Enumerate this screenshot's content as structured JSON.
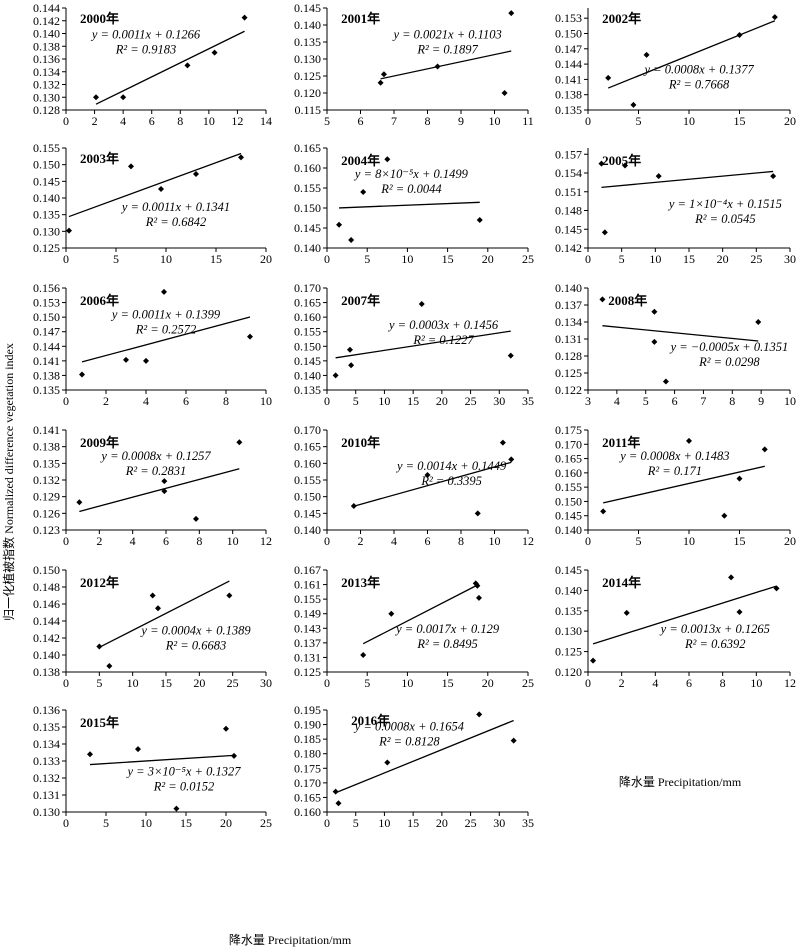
{
  "figure": {
    "ylabel": "归一化植被指数 Normalized difference vegetation index",
    "xlabel_right": "降水量 Precipitation/mm",
    "xlabel_bottom": "降水量 Precipitation/mm"
  },
  "chart_data": [
    {
      "type": "scatter",
      "title": "2000年",
      "equation": "y = 0.0011x + 0.1266",
      "r2": "R² = 0.9183",
      "x": [
        2.1,
        4.0,
        8.5,
        10.4,
        12.5
      ],
      "y": [
        0.13,
        0.13,
        0.135,
        0.137,
        0.1425
      ],
      "fit": {
        "slope": 0.0011,
        "intercept": 0.1266,
        "x_range": [
          2.1,
          12.5
        ]
      },
      "xlim": [
        0,
        14
      ],
      "xticks": [
        0,
        2,
        4,
        6,
        8,
        10,
        12,
        14
      ],
      "xtick_labels": [
        "0",
        "2",
        "4",
        "6",
        "8",
        "10",
        "12",
        "14"
      ],
      "ylim": [
        0.128,
        0.144
      ],
      "yticks": [
        0.128,
        0.13,
        0.132,
        0.134,
        0.136,
        0.138,
        0.14,
        0.142,
        0.144
      ],
      "ytick_labels": [
        "0.128",
        "0.130",
        "0.132",
        "0.134",
        "0.136",
        "0.138",
        "0.140",
        "0.142",
        "0.144"
      ],
      "grid": false
    },
    {
      "type": "scatter",
      "title": "2001年",
      "equation": "y = 0.0021x + 0.1103",
      "r2": "R² = 0.1897",
      "x": [
        6.6,
        6.7,
        8.3,
        10.3,
        10.5
      ],
      "y": [
        0.123,
        0.1255,
        0.1278,
        0.12,
        0.1435
      ],
      "fit": {
        "slope": 0.0021,
        "intercept": 0.1103,
        "x_range": [
          6.6,
          10.5
        ]
      },
      "xlim": [
        5,
        11
      ],
      "xticks": [
        5,
        6,
        7,
        8,
        9,
        10,
        11
      ],
      "xtick_labels": [
        "5",
        "6",
        "7",
        "8",
        "9",
        "10",
        "11"
      ],
      "ylim": [
        0.115,
        0.145
      ],
      "yticks": [
        0.115,
        0.12,
        0.125,
        0.13,
        0.135,
        0.14,
        0.145
      ],
      "ytick_labels": [
        "0.115",
        "0.120",
        "0.125",
        "0.130",
        "0.135",
        "0.140",
        "0.145"
      ],
      "grid": false
    },
    {
      "type": "scatter",
      "title": "2002年",
      "equation": "y = 0.0008x + 0.1377",
      "r2": "R² = 0.7668",
      "x": [
        2.0,
        4.5,
        5.8,
        15.0,
        18.5
      ],
      "y": [
        0.1413,
        0.136,
        0.1458,
        0.1497,
        0.1532
      ],
      "fit": {
        "slope": 0.0008,
        "intercept": 0.1377,
        "x_range": [
          2.0,
          18.5
        ]
      },
      "xlim": [
        0,
        20
      ],
      "xticks": [
        0,
        5,
        10,
        15,
        20
      ],
      "xtick_labels": [
        "0",
        "5",
        "10",
        "15",
        "20"
      ],
      "ylim": [
        0.135,
        0.155
      ],
      "yticks": [
        0.135,
        0.138,
        0.141,
        0.144,
        0.147,
        0.15,
        0.153
      ],
      "ytick_labels": [
        "0.135",
        "0.138",
        "0.141",
        "0.144",
        "0.147",
        "0.150",
        "0.153"
      ],
      "grid": false
    },
    {
      "type": "scatter",
      "title": "2003年",
      "equation": "y = 0.0011x + 0.1341",
      "r2": "R² = 0.6842",
      "x": [
        0.3,
        6.5,
        9.5,
        13.0,
        17.5
      ],
      "y": [
        0.1302,
        0.1495,
        0.1427,
        0.1472,
        0.1522
      ],
      "fit": {
        "slope": 0.0011,
        "intercept": 0.1341,
        "x_range": [
          0.3,
          17.5
        ]
      },
      "xlim": [
        0,
        20
      ],
      "xticks": [
        0,
        5,
        10,
        15,
        20
      ],
      "xtick_labels": [
        "0",
        "5",
        "10",
        "15",
        "20"
      ],
      "ylim": [
        0.125,
        0.155
      ],
      "yticks": [
        0.125,
        0.13,
        0.135,
        0.14,
        0.145,
        0.15,
        0.155
      ],
      "ytick_labels": [
        "0.125",
        "0.130",
        "0.135",
        "0.140",
        "0.145",
        "0.150",
        "0.155"
      ],
      "grid": false
    },
    {
      "type": "scatter",
      "title": "2004年",
      "equation": "y = 8×10⁻⁵x + 0.1499",
      "r2": "R² = 0.0044",
      "x": [
        1.5,
        3.0,
        4.5,
        7.5,
        19.0
      ],
      "y": [
        0.1458,
        0.142,
        0.154,
        0.1622,
        0.147
      ],
      "fit": {
        "slope": 8e-05,
        "intercept": 0.1499,
        "x_range": [
          1.5,
          19.0
        ]
      },
      "xlim": [
        0,
        25
      ],
      "xticks": [
        0,
        5,
        10,
        15,
        20,
        25
      ],
      "xtick_labels": [
        "0",
        "5",
        "10",
        "15",
        "20",
        "25"
      ],
      "ylim": [
        0.14,
        0.165
      ],
      "yticks": [
        0.14,
        0.145,
        0.15,
        0.155,
        0.16,
        0.165
      ],
      "ytick_labels": [
        "0.140",
        "0.145",
        "0.150",
        "0.155",
        "0.160",
        "0.165"
      ],
      "grid": false
    },
    {
      "type": "scatter",
      "title": "2005年",
      "equation": "y = 1×10⁻⁴x + 0.1515",
      "r2": "R² = 0.0545",
      "x": [
        2.0,
        2.5,
        5.5,
        10.5,
        27.5
      ],
      "y": [
        0.1555,
        0.1445,
        0.1552,
        0.1535,
        0.1535
      ],
      "fit": {
        "slope": 0.0001,
        "intercept": 0.1515,
        "x_range": [
          2.0,
          27.5
        ]
      },
      "xlim": [
        0,
        30
      ],
      "xticks": [
        0,
        5,
        10,
        15,
        20,
        25,
        30
      ],
      "xtick_labels": [
        "0",
        "5",
        "10",
        "15",
        "20",
        "25",
        "30"
      ],
      "ylim": [
        0.142,
        0.158
      ],
      "yticks": [
        0.142,
        0.145,
        0.148,
        0.151,
        0.154,
        0.157
      ],
      "ytick_labels": [
        "0.142",
        "0.145",
        "0.148",
        "0.151",
        "0.154",
        "0.157"
      ],
      "grid": false
    },
    {
      "type": "scatter",
      "title": "2006年",
      "equation": "y = 0.0011x + 0.1399",
      "r2": "R² = 0.2572",
      "x": [
        0.8,
        3.0,
        4.0,
        4.9,
        9.2
      ],
      "y": [
        0.1382,
        0.1412,
        0.141,
        0.1552,
        0.146
      ],
      "fit": {
        "slope": 0.0011,
        "intercept": 0.1399,
        "x_range": [
          0.8,
          9.2
        ]
      },
      "xlim": [
        0,
        10
      ],
      "xticks": [
        0,
        2,
        4,
        6,
        8,
        10
      ],
      "xtick_labels": [
        "0",
        "2",
        "4",
        "6",
        "8",
        "10"
      ],
      "ylim": [
        0.135,
        0.156
      ],
      "yticks": [
        0.135,
        0.138,
        0.141,
        0.144,
        0.147,
        0.15,
        0.153,
        0.156
      ],
      "ytick_labels": [
        "0.135",
        "0.138",
        "0.141",
        "0.144",
        "0.147",
        "0.150",
        "0.153",
        "0.156"
      ],
      "grid": false
    },
    {
      "type": "scatter",
      "title": "2007年",
      "equation": "y = 0.0003x + 0.1456",
      "r2": "R² = 0.1227",
      "x": [
        1.5,
        4.0,
        4.2,
        16.5,
        32.0
      ],
      "y": [
        0.14,
        0.1488,
        0.1435,
        0.1645,
        0.1468
      ],
      "fit": {
        "slope": 0.0003,
        "intercept": 0.1456,
        "x_range": [
          1.5,
          32.0
        ]
      },
      "xlim": [
        0,
        35
      ],
      "xticks": [
        0,
        5,
        10,
        15,
        20,
        25,
        30,
        35
      ],
      "xtick_labels": [
        "0",
        "5",
        "10",
        "15",
        "20",
        "25",
        "30",
        "35"
      ],
      "ylim": [
        0.135,
        0.17
      ],
      "yticks": [
        0.135,
        0.14,
        0.145,
        0.15,
        0.155,
        0.16,
        0.165,
        0.17
      ],
      "ytick_labels": [
        "0.135",
        "0.140",
        "0.145",
        "0.150",
        "0.155",
        "0.160",
        "0.165",
        "0.170"
      ],
      "grid": false
    },
    {
      "type": "scatter",
      "title": "2008年",
      "equation": "y = −0.0005x + 0.1351",
      "r2": "R² = 0.0298",
      "x": [
        3.5,
        5.3,
        5.3,
        5.7,
        8.9
      ],
      "y": [
        0.138,
        0.1358,
        0.1305,
        0.1235,
        0.134
      ],
      "fit": {
        "slope": -0.0005,
        "intercept": 0.1351,
        "x_range": [
          3.5,
          8.9
        ]
      },
      "xlim": [
        3,
        10
      ],
      "xticks": [
        3,
        4,
        5,
        6,
        7,
        8,
        9,
        10
      ],
      "xtick_labels": [
        "3",
        "4",
        "5",
        "6",
        "7",
        "8",
        "9",
        "10"
      ],
      "ylim": [
        0.122,
        0.14
      ],
      "yticks": [
        0.122,
        0.125,
        0.128,
        0.131,
        0.134,
        0.137,
        0.14
      ],
      "ytick_labels": [
        "0.122",
        "0.125",
        "0.128",
        "0.131",
        "0.134",
        "0.137",
        "0.140"
      ],
      "grid": false
    },
    {
      "type": "scatter",
      "title": "2009年",
      "equation": "y = 0.0008x + 0.1257",
      "r2": "R² = 0.2831",
      "x": [
        0.8,
        5.9,
        5.9,
        7.8,
        10.4
      ],
      "y": [
        0.128,
        0.1318,
        0.13,
        0.125,
        0.1388
      ],
      "fit": {
        "slope": 0.0008,
        "intercept": 0.1257,
        "x_range": [
          0.8,
          10.4
        ]
      },
      "xlim": [
        0,
        12
      ],
      "xticks": [
        0,
        2,
        4,
        6,
        8,
        10,
        12
      ],
      "xtick_labels": [
        "0",
        "2",
        "4",
        "6",
        "8",
        "10",
        "12"
      ],
      "ylim": [
        0.123,
        0.141
      ],
      "yticks": [
        0.123,
        0.126,
        0.129,
        0.132,
        0.135,
        0.138,
        0.141
      ],
      "ytick_labels": [
        "0.123",
        "0.126",
        "0.129",
        "0.132",
        "0.135",
        "0.138",
        "0.141"
      ],
      "grid": false
    },
    {
      "type": "scatter",
      "title": "2010年",
      "equation": "y = 0.0014x + 0.1449",
      "r2": "R² = 0.3395",
      "x": [
        1.6,
        6.0,
        9.0,
        10.5,
        11.0
      ],
      "y": [
        0.1472,
        0.1565,
        0.145,
        0.1662,
        0.1612
      ],
      "fit": {
        "slope": 0.0014,
        "intercept": 0.1449,
        "x_range": [
          1.6,
          11.0
        ]
      },
      "xlim": [
        0,
        12
      ],
      "xticks": [
        0,
        2,
        4,
        6,
        8,
        10,
        12
      ],
      "xtick_labels": [
        "0",
        "2",
        "4",
        "6",
        "8",
        "10",
        "12"
      ],
      "ylim": [
        0.14,
        0.17
      ],
      "yticks": [
        0.14,
        0.145,
        0.15,
        0.155,
        0.16,
        0.165,
        0.17
      ],
      "ytick_labels": [
        "0.140",
        "0.145",
        "0.150",
        "0.155",
        "0.160",
        "0.165",
        "0.170"
      ],
      "grid": false
    },
    {
      "type": "scatter",
      "title": "2011年",
      "equation": "y = 0.0008x + 0.1483",
      "r2": "R² = 0.171",
      "x": [
        1.5,
        10.0,
        13.5,
        15.0,
        17.5
      ],
      "y": [
        0.1465,
        0.1712,
        0.145,
        0.158,
        0.1682
      ],
      "fit": {
        "slope": 0.0008,
        "intercept": 0.1483,
        "x_range": [
          1.5,
          17.5
        ]
      },
      "xlim": [
        0,
        20
      ],
      "xticks": [
        0,
        5,
        10,
        15,
        20
      ],
      "xtick_labels": [
        "0",
        "5",
        "10",
        "15",
        "20"
      ],
      "ylim": [
        0.14,
        0.175
      ],
      "yticks": [
        0.14,
        0.145,
        0.15,
        0.155,
        0.16,
        0.165,
        0.17,
        0.175
      ],
      "ytick_labels": [
        "0.140",
        "0.145",
        "0.150",
        "0.155",
        "0.160",
        "0.165",
        "0.170",
        "0.175"
      ],
      "grid": false
    },
    {
      "type": "scatter",
      "title": "2012年",
      "equation": "y = 0.0004x + 0.1389",
      "r2": "R² = 0.6683",
      "x": [
        5.0,
        6.5,
        13.0,
        13.8,
        24.5
      ],
      "y": [
        0.141,
        0.1387,
        0.147,
        0.1455,
        0.147
      ],
      "fit": {
        "slope": 0.0004,
        "intercept": 0.1389,
        "x_range": [
          5.0,
          24.5
        ]
      },
      "xlim": [
        0,
        30
      ],
      "xticks": [
        0,
        5,
        10,
        15,
        20,
        25,
        30
      ],
      "xtick_labels": [
        "0",
        "5",
        "10",
        "15",
        "20",
        "25",
        "30"
      ],
      "ylim": [
        0.138,
        0.15
      ],
      "yticks": [
        0.138,
        0.14,
        0.142,
        0.144,
        0.146,
        0.148,
        0.15
      ],
      "ytick_labels": [
        "0.138",
        "0.140",
        "0.142",
        "0.144",
        "0.146",
        "0.148",
        "0.150"
      ],
      "grid": false
    },
    {
      "type": "scatter",
      "title": "2013年",
      "equation": "y = 0.0017x + 0.129",
      "r2": "R² = 0.8495",
      "x": [
        4.5,
        8.0,
        18.5,
        18.7,
        18.9
      ],
      "y": [
        0.132,
        0.149,
        0.1615,
        0.1605,
        0.1555
      ],
      "fit": {
        "slope": 0.0017,
        "intercept": 0.129,
        "x_range": [
          4.5,
          18.9
        ]
      },
      "xlim": [
        0,
        25
      ],
      "xticks": [
        0,
        5,
        10,
        15,
        20,
        25
      ],
      "xtick_labels": [
        "0",
        "5",
        "10",
        "15",
        "20",
        "25"
      ],
      "ylim": [
        0.125,
        0.167
      ],
      "yticks": [
        0.125,
        0.131,
        0.137,
        0.143,
        0.149,
        0.155,
        0.161,
        0.167
      ],
      "ytick_labels": [
        "0.125",
        "0.131",
        "0.137",
        "0.143",
        "0.149",
        "0.155",
        "0.161",
        "0.167"
      ],
      "grid": false
    },
    {
      "type": "scatter",
      "title": "2014年",
      "equation": "y = 0.0013x + 0.1265",
      "r2": "R² = 0.6392",
      "x": [
        0.3,
        2.3,
        8.5,
        9.0,
        11.2
      ],
      "y": [
        0.1228,
        0.1345,
        0.1432,
        0.1347,
        0.1405
      ],
      "fit": {
        "slope": 0.0013,
        "intercept": 0.1265,
        "x_range": [
          0.3,
          11.2
        ]
      },
      "xlim": [
        0,
        12
      ],
      "xticks": [
        0,
        2,
        4,
        6,
        8,
        10,
        12
      ],
      "xtick_labels": [
        "0",
        "2",
        "4",
        "6",
        "8",
        "10",
        "12"
      ],
      "ylim": [
        0.12,
        0.145
      ],
      "yticks": [
        0.12,
        0.125,
        0.13,
        0.135,
        0.14,
        0.145
      ],
      "ytick_labels": [
        "0.120",
        "0.125",
        "0.130",
        "0.135",
        "0.140",
        "0.145"
      ],
      "grid": false
    },
    {
      "type": "scatter",
      "title": "2015年",
      "equation": "y = 3×10⁻⁵x + 0.1327",
      "r2": "R² = 0.0152",
      "x": [
        3.0,
        9.0,
        13.8,
        20.0,
        21.0
      ],
      "y": [
        0.1334,
        0.1337,
        0.1302,
        0.1349,
        0.1333
      ],
      "fit": {
        "slope": 3e-05,
        "intercept": 0.1327,
        "x_range": [
          3.0,
          21.0
        ]
      },
      "xlim": [
        0,
        25
      ],
      "xticks": [
        0,
        5,
        10,
        15,
        20,
        25
      ],
      "xtick_labels": [
        "0",
        "5",
        "10",
        "15",
        "20",
        "25"
      ],
      "ylim": [
        0.13,
        0.136
      ],
      "yticks": [
        0.13,
        0.131,
        0.132,
        0.133,
        0.134,
        0.135,
        0.136
      ],
      "ytick_labels": [
        "0.130",
        "0.131",
        "0.132",
        "0.133",
        "0.134",
        "0.135",
        "0.136"
      ],
      "grid": false
    },
    {
      "type": "scatter",
      "title": "2016年",
      "equation": "y = 0.0008x + 0.1654",
      "r2": "R² = 0.8128",
      "x": [
        1.5,
        2.0,
        10.5,
        26.5,
        32.5
      ],
      "y": [
        0.167,
        0.163,
        0.177,
        0.1935,
        0.1845
      ],
      "fit": {
        "slope": 0.0008,
        "intercept": 0.1654,
        "x_range": [
          1.5,
          32.5
        ]
      },
      "xlim": [
        0,
        35
      ],
      "xticks": [
        0,
        5,
        10,
        15,
        20,
        25,
        30,
        35
      ],
      "xtick_labels": [
        "0",
        "5",
        "10",
        "15",
        "20",
        "25",
        "30",
        "35"
      ],
      "ylim": [
        0.16,
        0.195
      ],
      "yticks": [
        0.16,
        0.165,
        0.17,
        0.175,
        0.18,
        0.185,
        0.19,
        0.195
      ],
      "ytick_labels": [
        "0.160",
        "0.165",
        "0.170",
        "0.175",
        "0.180",
        "0.185",
        "0.190",
        "0.195"
      ],
      "grid": false
    }
  ]
}
